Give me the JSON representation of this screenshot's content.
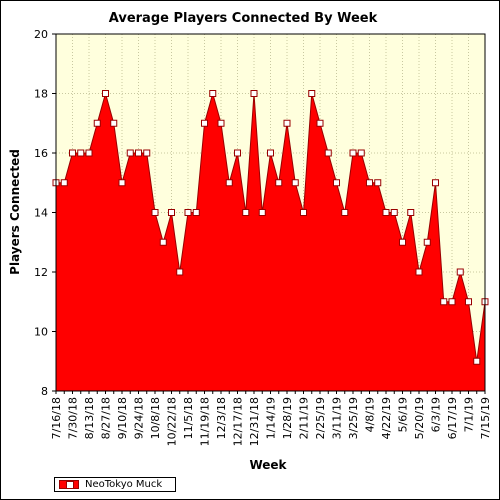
{
  "chart_data": {
    "type": "area",
    "title": "Average Players Connected By Week",
    "xlabel": "Week",
    "ylabel": "Players Connected",
    "ylim": [
      8,
      20
    ],
    "yticks": [
      8,
      10,
      12,
      14,
      16,
      18,
      20
    ],
    "x": [
      "7/16/18",
      "7/23/18",
      "7/30/18",
      "8/6/18",
      "8/13/18",
      "8/20/18",
      "8/27/18",
      "9/3/18",
      "9/10/18",
      "9/17/18",
      "9/24/18",
      "10/1/18",
      "10/8/18",
      "10/15/18",
      "10/22/18",
      "10/29/18",
      "11/5/18",
      "11/12/18",
      "11/19/18",
      "11/26/18",
      "12/3/18",
      "12/10/18",
      "12/17/18",
      "12/24/18",
      "12/31/18",
      "1/7/19",
      "1/14/19",
      "1/21/19",
      "1/28/19",
      "2/4/19",
      "2/11/19",
      "2/18/19",
      "2/25/19",
      "3/4/19",
      "3/11/19",
      "3/18/19",
      "3/25/19",
      "4/1/19",
      "4/8/19",
      "4/15/19",
      "4/22/19",
      "4/29/19",
      "5/6/19",
      "5/13/19",
      "5/20/19",
      "5/27/19",
      "6/3/19",
      "6/10/19",
      "6/17/19",
      "6/24/19",
      "7/1/19",
      "7/8/19",
      "7/15/19"
    ],
    "x_tick_labels": [
      "7/16/18",
      "7/30/18",
      "8/13/18",
      "8/27/18",
      "9/10/18",
      "9/24/18",
      "10/8/18",
      "10/22/18",
      "11/5/18",
      "11/19/18",
      "12/3/18",
      "12/17/18",
      "12/31/18",
      "1/14/19",
      "1/28/19",
      "2/11/19",
      "2/25/19",
      "3/11/19",
      "3/25/19",
      "4/8/19",
      "4/22/19",
      "5/6/19",
      "5/20/19",
      "6/3/19",
      "6/17/19",
      "7/1/19",
      "7/15/19"
    ],
    "series": [
      {
        "name": "NeoTokyo Muck",
        "values": [
          15,
          15,
          16,
          16,
          16,
          17,
          18,
          17,
          15,
          16,
          16,
          16,
          14,
          13,
          14,
          12,
          14,
          14,
          17,
          18,
          17,
          15,
          16,
          14,
          18,
          14,
          16,
          15,
          17,
          15,
          14,
          18,
          17,
          16,
          15,
          14,
          16,
          16,
          15,
          15,
          14,
          14,
          13,
          14,
          12,
          13,
          15,
          11,
          11,
          12,
          11,
          9,
          11
        ]
      }
    ],
    "grid": true,
    "legend_position": "bottom-left",
    "colors": {
      "fill": "#ff0000",
      "line": "#990000",
      "marker_fill": "#ffffff",
      "plot_background": "#ffffdd",
      "grid": "#c8c8a0"
    }
  }
}
